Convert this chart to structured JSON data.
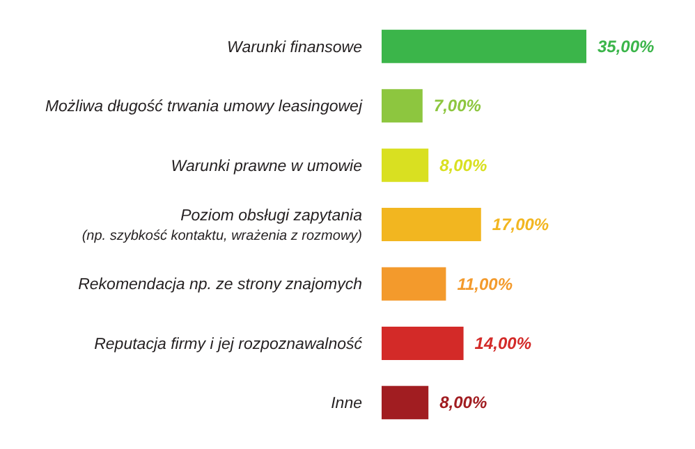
{
  "chart_data": {
    "type": "bar",
    "orientation": "horizontal",
    "categories": [
      "Warunki finansowe",
      "Możliwa długość trwania umowy leasingowej",
      "Warunki prawne w umowie",
      "Poziom obsługi zapytania\n(np. szybkość kontaktu, wrażenia z rozmowy)",
      "Rekomendacja np. ze strony znajomych",
      "Reputacja firmy i jej rozpoznawalność",
      "Inne"
    ],
    "values": [
      35,
      7,
      8,
      17,
      11,
      14,
      8
    ],
    "colors": [
      "#3bb54a",
      "#8dc63f",
      "#d9e021",
      "#f2b620",
      "#f39a2c",
      "#d32a28",
      "#a11d21"
    ],
    "value_labels": [
      "35,00%",
      "7,00%",
      "8,00%",
      "17,00%",
      "11,00%",
      "14,00%",
      "8,00%"
    ]
  }
}
